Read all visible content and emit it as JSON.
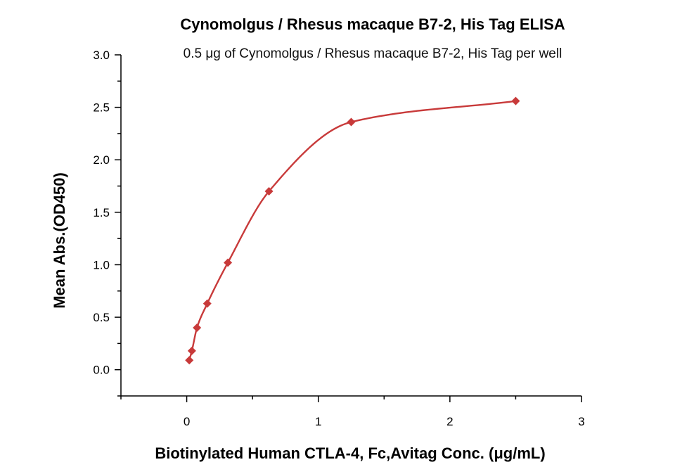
{
  "chart_data": {
    "type": "scatter",
    "title": "Cynomolgus / Rhesus macaque B7-2, His Tag ELISA",
    "subtitle": "0.5 μg of Cynomolgus / Rhesus macaque B7-2, His Tag per well",
    "xlabel": "Biotinylated Human CTLA-4, Fc,Avitag Conc. (μg/mL)",
    "ylabel": "Mean Abs.(OD450)",
    "xlim": [
      -0.5,
      3
    ],
    "ylim": [
      -0.25,
      3.0
    ],
    "x_ticks": [
      0,
      1,
      2,
      3
    ],
    "x_tick_labels": [
      "0",
      "1",
      "2",
      "3"
    ],
    "y_ticks": [
      0.0,
      0.5,
      1.0,
      1.5,
      2.0,
      2.5,
      3.0
    ],
    "y_tick_labels": [
      "0.0",
      "0.5",
      "1.0",
      "1.5",
      "2.0",
      "2.5",
      "3.0"
    ],
    "grid": false,
    "legend": "none",
    "marker": "diamond",
    "color": "#c83a3a",
    "series": [
      {
        "x": [
          0.0195,
          0.039,
          0.078,
          0.156,
          0.3125,
          0.625,
          1.25,
          2.5
        ],
        "y": [
          0.09,
          0.18,
          0.4,
          0.63,
          1.02,
          1.7,
          2.36,
          2.56
        ]
      }
    ],
    "fit_curve": true
  }
}
